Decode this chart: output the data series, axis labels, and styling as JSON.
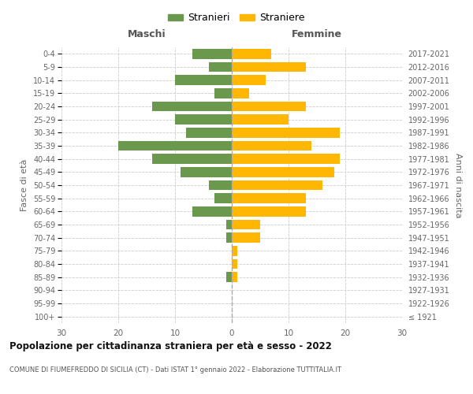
{
  "age_groups": [
    "100+",
    "95-99",
    "90-94",
    "85-89",
    "80-84",
    "75-79",
    "70-74",
    "65-69",
    "60-64",
    "55-59",
    "50-54",
    "45-49",
    "40-44",
    "35-39",
    "30-34",
    "25-29",
    "20-24",
    "15-19",
    "10-14",
    "5-9",
    "0-4"
  ],
  "birth_years": [
    "≤ 1921",
    "1922-1926",
    "1927-1931",
    "1932-1936",
    "1937-1941",
    "1942-1946",
    "1947-1951",
    "1952-1956",
    "1957-1961",
    "1962-1966",
    "1967-1971",
    "1972-1976",
    "1977-1981",
    "1982-1986",
    "1987-1991",
    "1992-1996",
    "1997-2001",
    "2002-2006",
    "2007-2011",
    "2012-2016",
    "2017-2021"
  ],
  "males": [
    0,
    0,
    0,
    1,
    0,
    0,
    1,
    1,
    7,
    3,
    4,
    9,
    14,
    20,
    8,
    10,
    14,
    3,
    10,
    4,
    7
  ],
  "females": [
    0,
    0,
    0,
    1,
    1,
    1,
    5,
    5,
    13,
    13,
    16,
    18,
    19,
    14,
    19,
    10,
    13,
    3,
    6,
    13,
    7
  ],
  "male_color": "#6a994e",
  "female_color": "#ffb703",
  "dashed_line_color": "#aaaaaa",
  "background_color": "#ffffff",
  "grid_color": "#cccccc",
  "title": "Popolazione per cittadinanza straniera per età e sesso - 2022",
  "subtitle": "COMUNE DI FIUMEFREDDO DI SICILIA (CT) - Dati ISTAT 1° gennaio 2022 - Elaborazione TUTTITALIA.IT",
  "xlabel_left": "Maschi",
  "xlabel_right": "Femmine",
  "ylabel_left": "Fasce di età",
  "ylabel_right": "Anni di nascita",
  "legend_male": "Stranieri",
  "legend_female": "Straniere",
  "xlim": 30,
  "bar_height": 0.75
}
